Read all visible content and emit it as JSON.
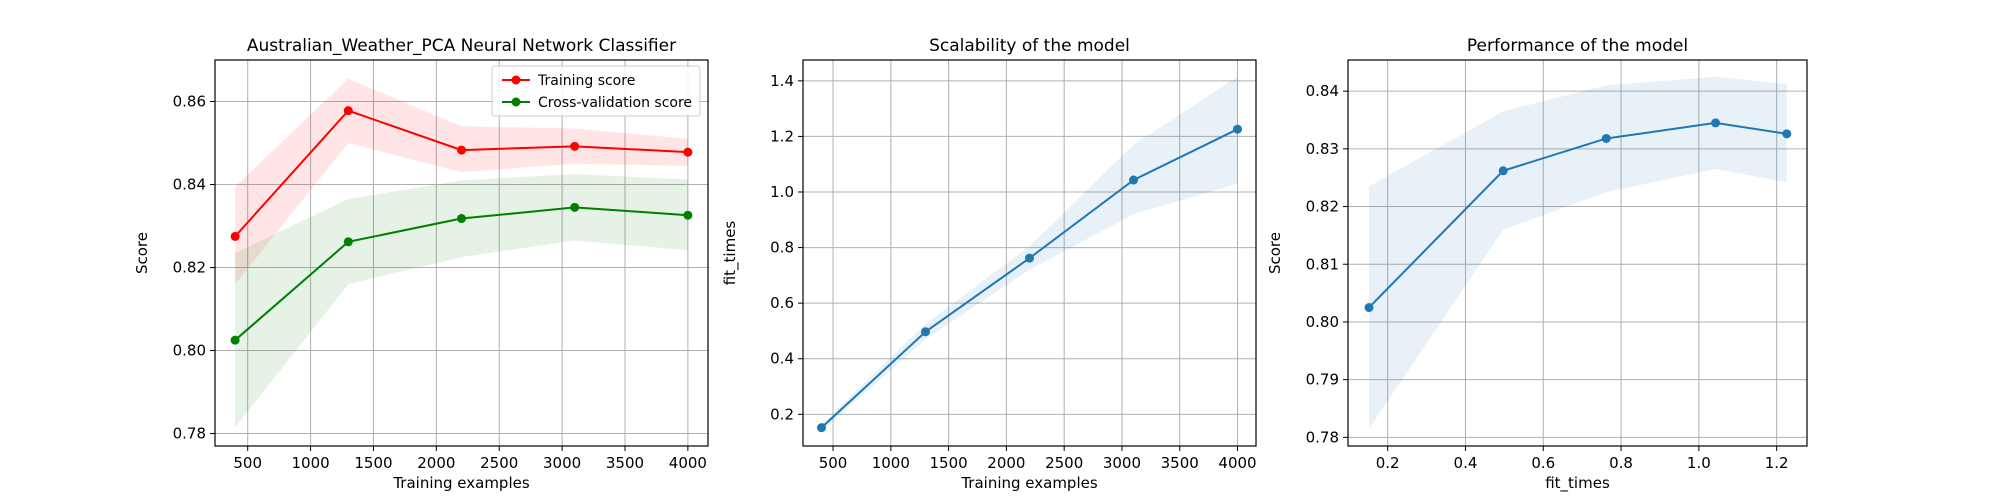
{
  "chart_data": [
    {
      "type": "line",
      "title": "Australian_Weather_PCA Neural Network Classifier",
      "xlabel": "Training examples",
      "ylabel": "Score",
      "xlim": [
        240,
        4160
      ],
      "ylim": [
        0.777,
        0.87
      ],
      "xticks": [
        500,
        1000,
        1500,
        2000,
        2500,
        3000,
        3500,
        4000
      ],
      "yticks": [
        0.78,
        0.8,
        0.82,
        0.84,
        0.86
      ],
      "ytick_labels": [
        "0.78",
        "0.80",
        "0.82",
        "0.84",
        "0.86"
      ],
      "grid": true,
      "legend": "top-right",
      "series": [
        {
          "name": "Training score",
          "color": "#ff0000",
          "x": [
            400,
            1300,
            2200,
            3100,
            4000
          ],
          "y": [
            0.8275,
            0.8578,
            0.8483,
            0.8492,
            0.8478
          ],
          "lower": [
            0.816,
            0.85,
            0.843,
            0.845,
            0.8445
          ],
          "upper": [
            0.8395,
            0.8655,
            0.854,
            0.8535,
            0.851
          ]
        },
        {
          "name": "Cross-validation score",
          "color": "#008000",
          "x": [
            400,
            1300,
            2200,
            3100,
            4000
          ],
          "y": [
            0.8025,
            0.8262,
            0.8318,
            0.8345,
            0.8326
          ],
          "lower": [
            0.7815,
            0.816,
            0.8225,
            0.8265,
            0.8242
          ],
          "upper": [
            0.8235,
            0.8365,
            0.841,
            0.8425,
            0.8412
          ]
        }
      ]
    },
    {
      "type": "line",
      "title": "Scalability of the model",
      "xlabel": "Training examples",
      "ylabel": "fit_times",
      "xlim": [
        240,
        4160
      ],
      "ylim": [
        0.086,
        1.475
      ],
      "xticks": [
        500,
        1000,
        1500,
        2000,
        2500,
        3000,
        3500,
        4000
      ],
      "yticks": [
        0.2,
        0.4,
        0.6,
        0.8,
        1.0,
        1.2,
        1.4
      ],
      "ytick_labels": [
        "0.2",
        "0.4",
        "0.6",
        "0.8",
        "1.0",
        "1.2",
        "1.4"
      ],
      "grid": true,
      "series": [
        {
          "color": "#1f77b4",
          "x": [
            400,
            1300,
            2200,
            3100,
            4000
          ],
          "y": [
            0.152,
            0.497,
            0.762,
            1.043,
            1.226
          ],
          "lower": [
            0.14,
            0.47,
            0.72,
            0.92,
            1.03
          ],
          "upper": [
            0.165,
            0.525,
            0.805,
            1.17,
            1.415
          ]
        }
      ]
    },
    {
      "type": "line",
      "title": "Performance of the model",
      "xlabel": "fit_times",
      "ylabel": "Score",
      "xlim": [
        0.098,
        1.278
      ],
      "ylim": [
        0.7785,
        0.8454
      ],
      "xticks": [
        0.2,
        0.4,
        0.6,
        0.8,
        1.0,
        1.2
      ],
      "xtick_labels": [
        "0.2",
        "0.4",
        "0.6",
        "0.8",
        "1.0",
        "1.2"
      ],
      "yticks": [
        0.78,
        0.79,
        0.8,
        0.81,
        0.82,
        0.83,
        0.84
      ],
      "ytick_labels": [
        "0.78",
        "0.79",
        "0.80",
        "0.81",
        "0.82",
        "0.83",
        "0.84"
      ],
      "grid": true,
      "series": [
        {
          "color": "#1f77b4",
          "x": [
            0.152,
            0.497,
            0.762,
            1.043,
            1.226
          ],
          "y": [
            0.8025,
            0.8262,
            0.8318,
            0.8345,
            0.8326
          ],
          "lower": [
            0.7815,
            0.816,
            0.8225,
            0.8265,
            0.8242
          ],
          "upper": [
            0.8235,
            0.8365,
            0.841,
            0.8425,
            0.8412
          ]
        }
      ]
    }
  ]
}
